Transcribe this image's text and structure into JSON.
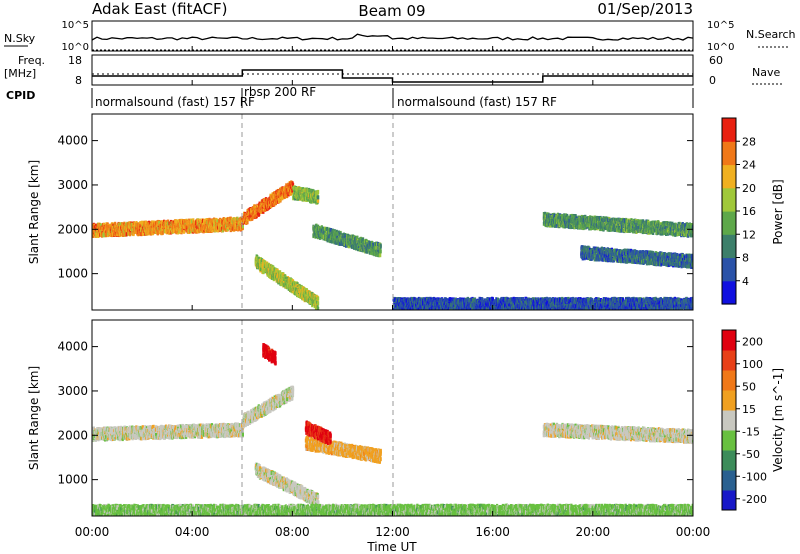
{
  "header": {
    "station": "Adak East (fitACF)",
    "beam": "Beam 09",
    "date": "01/Sep/2013"
  },
  "summary": {
    "nsky_label": "N.Sky",
    "nsearch_label": "N.Search",
    "nsky_ticks": [
      "10^5",
      "10^0"
    ],
    "nsearch_ticks": [
      "10^5",
      "10^0"
    ],
    "freq_label": "Freq.",
    "freq_unit": "[MHz]",
    "freq_ticks": [
      "18",
      "8"
    ],
    "nave_label": "Nave",
    "nave_ticks": [
      "60",
      "0"
    ],
    "cpid_label": "CPID",
    "cpid_segments": [
      {
        "label": "normalsound (fast) 157 RF",
        "start": 0,
        "end": 6
      },
      {
        "label": "rbsp 200 RF",
        "start": 6,
        "end": 12
      },
      {
        "label": "normalsound (fast) 157 RF",
        "start": 12,
        "end": 24
      }
    ]
  },
  "x_axis": {
    "title": "Time UT",
    "ticks": [
      "00:00",
      "04:00",
      "08:00",
      "12:00",
      "16:00",
      "20:00",
      "00:00"
    ]
  },
  "power_panel": {
    "ylabel": "Slant Range [km]",
    "yticks": [
      "1000",
      "2000",
      "3000",
      "4000"
    ],
    "colorbar_title": "Power [dB]",
    "colorbar_ticks": [
      "4",
      "8",
      "12",
      "16",
      "20",
      "24",
      "28"
    ],
    "colors": [
      "#1010e0",
      "#2a52a8",
      "#3c7f6a",
      "#5ea84a",
      "#a0c83a",
      "#f0b020",
      "#f07818",
      "#e82010"
    ]
  },
  "velocity_panel": {
    "ylabel": "Slant Range [km]",
    "yticks": [
      "1000",
      "2000",
      "3000",
      "4000"
    ],
    "colorbar_title": "Velocity [m s^-1]",
    "colorbar_ticks": [
      "200",
      "100",
      "50",
      "15",
      "-15",
      "-50",
      "-100",
      "-200"
    ],
    "colors": [
      "#1818c8",
      "#2a6090",
      "#3c8c5a",
      "#68c040",
      "#c8c8c0",
      "#f0a020",
      "#f07818",
      "#e84018",
      "#e00010"
    ]
  },
  "chart_data": {
    "type": "heatmap",
    "title": "Adak East (fitACF)",
    "xlabel": "Time UT",
    "ylabel": "Slant Range [km]",
    "xlim": [
      0,
      24
    ],
    "ylim": [
      180,
      4600
    ],
    "x_unit": "hours UT",
    "series": [
      {
        "name": "Power [dB]",
        "clim": [
          0,
          32
        ],
        "regions": [
          {
            "t": [
              0,
              6
            ],
            "r_center_start": 1950,
            "r_center_end": 2100,
            "value": 24
          },
          {
            "t": [
              6,
              8
            ],
            "r_center_start": 2200,
            "r_center_end": 2950,
            "value": 26
          },
          {
            "t": [
              8,
              9
            ],
            "r_center_start": 2800,
            "r_center_end": 2700,
            "value": 16
          },
          {
            "t": [
              8.8,
              11.5
            ],
            "r_center_start": 1950,
            "r_center_end": 1500,
            "value": 12
          },
          {
            "t": [
              6.5,
              9.0
            ],
            "r_center_start": 1250,
            "r_center_end": 300,
            "value": 18
          },
          {
            "t": [
              12,
              24
            ],
            "r_center_start": 280,
            "r_center_end": 280,
            "value": 6
          },
          {
            "t": [
              18,
              24
            ],
            "r_center_start": 2200,
            "r_center_end": 1950,
            "value": 12
          },
          {
            "t": [
              19.5,
              24
            ],
            "r_center_start": 1450,
            "r_center_end": 1250,
            "value": 8
          }
        ]
      },
      {
        "name": "Velocity [m s^-1]",
        "clim": [
          -200,
          200
        ],
        "regions": [
          {
            "t": [
              0,
              6
            ],
            "r_center_start": 2000,
            "r_center_end": 2100,
            "value": 0
          },
          {
            "t": [
              6,
              8
            ],
            "r_center_start": 2300,
            "r_center_end": 2950,
            "value": 0
          },
          {
            "t": [
              6.8,
              7.3
            ],
            "r_center_start": 3900,
            "r_center_end": 3700,
            "value": 180
          },
          {
            "t": [
              8.5,
              11.5
            ],
            "r_center_start": 1800,
            "r_center_end": 1500,
            "value": 40
          },
          {
            "t": [
              8.5,
              9.5
            ],
            "r_center_start": 2150,
            "r_center_end": 1900,
            "value": 160
          },
          {
            "t": [
              6.5,
              9.0
            ],
            "r_center_start": 1200,
            "r_center_end": 500,
            "value": 0
          },
          {
            "t": [
              0,
              24
            ],
            "r_center_start": 260,
            "r_center_end": 260,
            "value": -40
          },
          {
            "t": [
              18,
              24
            ],
            "r_center_start": 2100,
            "r_center_end": 1950,
            "value": 0
          }
        ]
      }
    ]
  }
}
